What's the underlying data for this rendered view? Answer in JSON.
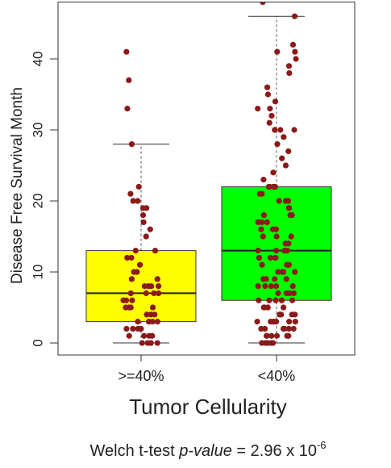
{
  "chart_data": {
    "type": "box",
    "ylabel": "Disease Free Survival Month",
    "xlabel": "Tumor Cellularity",
    "caption": [
      "Welch t-test ",
      "p-value",
      " = 2.96 x 10",
      "-6"
    ],
    "categories": [
      ">=40%",
      "<40%"
    ],
    "colors": [
      "#ffff00",
      "#00ff00"
    ],
    "boxes": [
      {
        "whislo": 0,
        "q1": 3,
        "med": 7,
        "q3": 13,
        "whishi": 28
      },
      {
        "whislo": 0,
        "q1": 6,
        "med": 13,
        "q3": 22,
        "whishi": 46
      }
    ],
    "point_color": "#8b1a1a",
    "points": [
      [
        0,
        0,
        0,
        0,
        1,
        1,
        1,
        1,
        2,
        2,
        2,
        2,
        2,
        3,
        3,
        3,
        3,
        3,
        4,
        4,
        4,
        5,
        5,
        5,
        5,
        6,
        6,
        6,
        7,
        7,
        7,
        7,
        8,
        8,
        8,
        8,
        9,
        9,
        10,
        10,
        11,
        12,
        12,
        13,
        13,
        15,
        16,
        17,
        18,
        19,
        19,
        20,
        20,
        21,
        22,
        28,
        33,
        37,
        41
      ],
      [
        0,
        0,
        0,
        0,
        0,
        1,
        1,
        1,
        1,
        1,
        1,
        2,
        2,
        2,
        2,
        2,
        2,
        3,
        3,
        3,
        3,
        3,
        3,
        3,
        4,
        4,
        4,
        4,
        4,
        5,
        5,
        5,
        5,
        5,
        6,
        6,
        6,
        6,
        6,
        6,
        7,
        7,
        7,
        7,
        8,
        8,
        8,
        8,
        8,
        9,
        9,
        9,
        9,
        10,
        10,
        10,
        10,
        11,
        11,
        11,
        11,
        12,
        12,
        12,
        12,
        13,
        13,
        13,
        13,
        14,
        14,
        14,
        15,
        15,
        15,
        16,
        16,
        16,
        17,
        17,
        17,
        18,
        18,
        18,
        19,
        19,
        20,
        20,
        20,
        21,
        21,
        22,
        22,
        22,
        22,
        23,
        24,
        25,
        26,
        27,
        28,
        29,
        30,
        30,
        30,
        31,
        32,
        33,
        33,
        34,
        35,
        36,
        38,
        39,
        40,
        41,
        41,
        42,
        46,
        48
      ]
    ],
    "ylim": [
      -1.7,
      48
    ],
    "yticks": [
      0,
      10,
      20,
      30,
      40
    ]
  }
}
